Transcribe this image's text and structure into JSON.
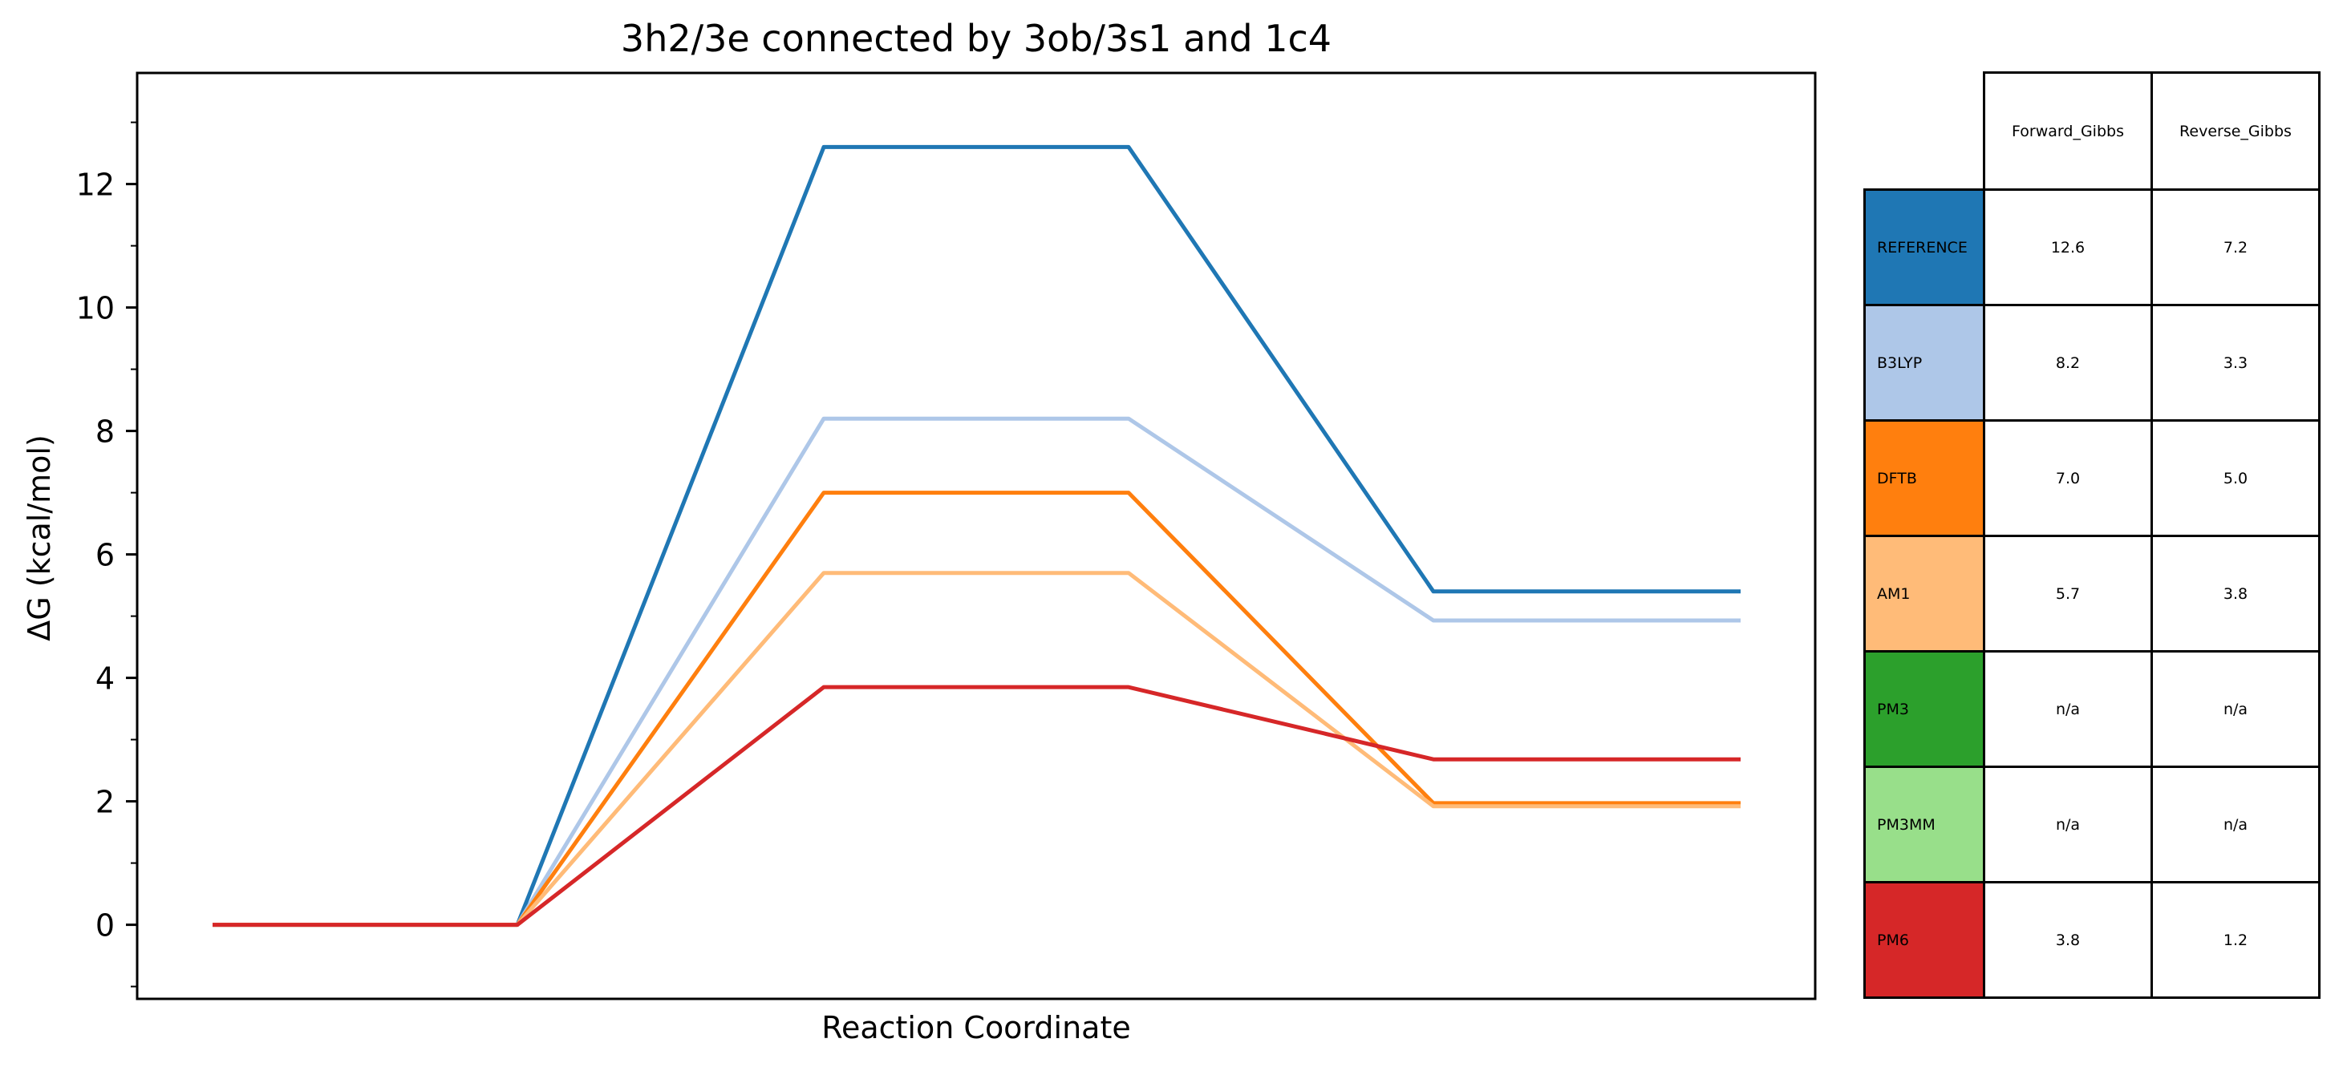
{
  "chart_data": {
    "type": "line",
    "title": "3h2/3e connected by 3ob/3s1 and 1c4",
    "xlabel": "Reaction Coordinate",
    "ylabel": "ΔG (kcal/mol)",
    "ylim": [
      -1.2,
      13.8
    ],
    "y_ticks": [
      0,
      2,
      4,
      6,
      8,
      10,
      12
    ],
    "grid": false,
    "series": [
      {
        "name": "REFERENCE",
        "color": "#1f77b4",
        "values": [
          0,
          0,
          12.6,
          12.6,
          5.4,
          5.4
        ]
      },
      {
        "name": "B3LYP",
        "color": "#aec7e8",
        "values": [
          0,
          0,
          8.2,
          8.2,
          4.93,
          4.93
        ]
      },
      {
        "name": "DFTB",
        "color": "#ff7f0e",
        "values": [
          0,
          0,
          7.0,
          7.0,
          1.97,
          1.97
        ]
      },
      {
        "name": "AM1",
        "color": "#ffbb78",
        "values": [
          0,
          0,
          5.7,
          5.7,
          1.92,
          1.92
        ]
      },
      {
        "name": "PM6",
        "color": "#d62728",
        "values": [
          0,
          0,
          3.85,
          3.85,
          2.68,
          2.68
        ]
      }
    ]
  },
  "table": {
    "columns": [
      "Forward_Gibbs",
      "Reverse_Gibbs"
    ],
    "rows": [
      {
        "label": "REFERENCE",
        "color": "#1f77b4",
        "forward": "12.6",
        "reverse": "7.2"
      },
      {
        "label": "B3LYP",
        "color": "#aec7e8",
        "forward": "8.2",
        "reverse": "3.3"
      },
      {
        "label": "DFTB",
        "color": "#ff7f0e",
        "forward": "7.0",
        "reverse": "5.0"
      },
      {
        "label": "AM1",
        "color": "#ffbb78",
        "forward": "5.7",
        "reverse": "3.8"
      },
      {
        "label": "PM3",
        "color": "#2ca02c",
        "forward": "n/a",
        "reverse": "n/a"
      },
      {
        "label": "PM3MM",
        "color": "#98df8a",
        "forward": "n/a",
        "reverse": "n/a"
      },
      {
        "label": "PM6",
        "color": "#d62728",
        "forward": "3.8",
        "reverse": "1.2"
      }
    ]
  }
}
